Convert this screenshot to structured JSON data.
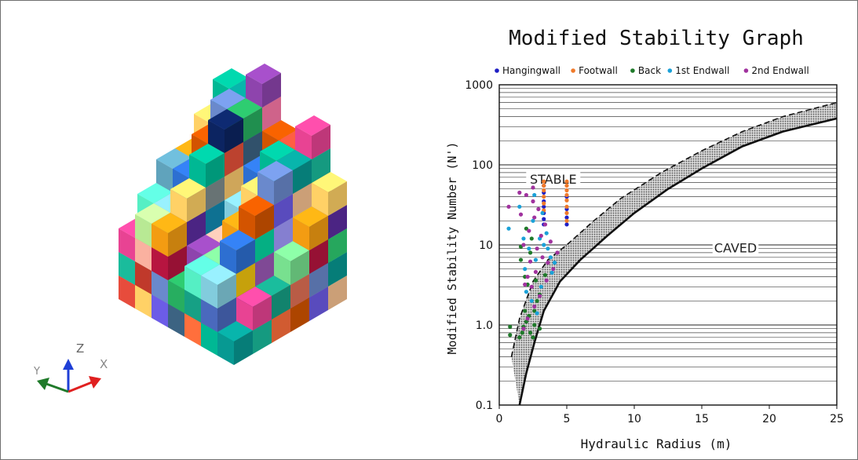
{
  "left_figure": {
    "axis_triad": {
      "z_label": "Z",
      "x_label": "X",
      "y_label": "Y"
    }
  },
  "chart_data": {
    "type": "scatter",
    "title": "Modified Stability Graph",
    "xlabel": "Hydraulic Radius (m)",
    "ylabel": "Modified Stability Number (N')",
    "xlim": [
      0,
      25
    ],
    "ylim": [
      0.1,
      1000
    ],
    "yscale": "log",
    "xticks": [
      "0",
      "5",
      "10",
      "15",
      "20",
      "25"
    ],
    "yticks": [
      "0.1",
      "1.0",
      "10",
      "100",
      "1000"
    ],
    "legend_placement": "top",
    "grid": "horizontal",
    "annotations": [
      {
        "text": "STABLE",
        "x": 4.0,
        "y": 65
      },
      {
        "text": "CAVED",
        "x": 17.5,
        "y": 9
      }
    ],
    "transition_zone": {
      "lower_boundary": [
        [
          1.5,
          0.1
        ],
        [
          2,
          0.25
        ],
        [
          2.6,
          0.6
        ],
        [
          3.3,
          1.5
        ],
        [
          4.5,
          3.5
        ],
        [
          6,
          6.5
        ],
        [
          8,
          13
        ],
        [
          10,
          25
        ],
        [
          12.5,
          50
        ],
        [
          15,
          90
        ],
        [
          18,
          170
        ],
        [
          21,
          260
        ],
        [
          25,
          380
        ]
      ],
      "upper_boundary": [
        [
          0.9,
          0.4
        ],
        [
          1.5,
          1.2
        ],
        [
          2.5,
          3.5
        ],
        [
          3.6,
          6.5
        ],
        [
          5,
          10
        ],
        [
          7,
          20
        ],
        [
          9,
          38
        ],
        [
          12,
          80
        ],
        [
          15,
          150
        ],
        [
          18,
          260
        ],
        [
          21,
          400
        ],
        [
          25,
          600
        ]
      ]
    },
    "series": [
      {
        "name": "Hangingwall",
        "color": "#1f1fc4",
        "points": [
          [
            3.3,
            35
          ],
          [
            3.3,
            30
          ],
          [
            3.3,
            25
          ],
          [
            3.3,
            21
          ],
          [
            3.3,
            18
          ],
          [
            5.0,
            28
          ],
          [
            5.0,
            22
          ],
          [
            5.0,
            18
          ],
          [
            3.3,
            45
          ],
          [
            5.0,
            40
          ],
          [
            3.3,
            55
          ]
        ]
      },
      {
        "name": "Footwall",
        "color": "#f07a2a",
        "points": [
          [
            3.3,
            62
          ],
          [
            3.3,
            55
          ],
          [
            3.3,
            48
          ],
          [
            3.3,
            40
          ],
          [
            3.3,
            33
          ],
          [
            3.3,
            27
          ],
          [
            5.0,
            62
          ],
          [
            5.0,
            55
          ],
          [
            5.0,
            48
          ],
          [
            5.0,
            42
          ],
          [
            5.0,
            36
          ],
          [
            5.0,
            30
          ],
          [
            5.0,
            25
          ],
          [
            5.0,
            20
          ]
        ]
      },
      {
        "name": "Back",
        "color": "#1f7a2a",
        "points": [
          [
            0.8,
            0.95
          ],
          [
            0.8,
            0.75
          ],
          [
            1.5,
            0.7
          ],
          [
            1.7,
            0.8
          ],
          [
            1.8,
            0.95
          ],
          [
            2.0,
            1.1
          ],
          [
            2.2,
            1.3
          ],
          [
            2.3,
            0.8
          ],
          [
            2.5,
            0.7
          ],
          [
            2.6,
            1.5
          ],
          [
            2.8,
            2.0
          ],
          [
            3.0,
            2.4
          ],
          [
            2.1,
            3.2
          ],
          [
            1.9,
            4.0
          ],
          [
            1.6,
            6.5
          ],
          [
            2.3,
            8.0
          ],
          [
            3.0,
            0.9
          ],
          [
            2.6,
            1.0
          ],
          [
            1.9,
            1.5
          ],
          [
            2.7,
            3.6
          ],
          [
            3.4,
            4.2
          ],
          [
            1.6,
            9.5
          ],
          [
            2.4,
            12
          ],
          [
            2.0,
            16
          ]
        ]
      },
      {
        "name": "1st Endwall",
        "color": "#1ba1d8",
        "points": [
          [
            0.7,
            16
          ],
          [
            1.5,
            30
          ],
          [
            2.6,
            42
          ],
          [
            3.2,
            25
          ],
          [
            3.0,
            12
          ],
          [
            2.2,
            9
          ],
          [
            1.9,
            5
          ],
          [
            2.7,
            6.5
          ],
          [
            3.3,
            10
          ],
          [
            3.6,
            9
          ],
          [
            3.8,
            7
          ],
          [
            2.0,
            2.6
          ],
          [
            2.4,
            2.0
          ],
          [
            3.1,
            3.0
          ],
          [
            2.8,
            1.4
          ],
          [
            3.5,
            14
          ],
          [
            2.5,
            20
          ],
          [
            1.8,
            12
          ],
          [
            4.1,
            6
          ],
          [
            3.9,
            4.5
          ]
        ]
      },
      {
        "name": "2nd Endwall",
        "color": "#a0329e",
        "points": [
          [
            0.7,
            30
          ],
          [
            1.5,
            45
          ],
          [
            2.0,
            42
          ],
          [
            2.5,
            35
          ],
          [
            2.6,
            22
          ],
          [
            2.2,
            15
          ],
          [
            1.8,
            10
          ],
          [
            2.8,
            9
          ],
          [
            3.2,
            7
          ],
          [
            3.6,
            6
          ],
          [
            4.0,
            5
          ],
          [
            2.1,
            4
          ],
          [
            2.4,
            3
          ],
          [
            3.0,
            2.3
          ],
          [
            2.6,
            1.7
          ],
          [
            2.1,
            1.2
          ],
          [
            1.8,
            0.9
          ],
          [
            3.4,
            18
          ],
          [
            2.9,
            28
          ],
          [
            1.6,
            24
          ],
          [
            3.8,
            11
          ],
          [
            4.3,
            8
          ],
          [
            2.7,
            4.6
          ],
          [
            3.5,
            3.6
          ],
          [
            2.3,
            6.2
          ],
          [
            1.9,
            3.2
          ],
          [
            3.1,
            13
          ],
          [
            2.5,
            52
          ]
        ]
      }
    ]
  }
}
